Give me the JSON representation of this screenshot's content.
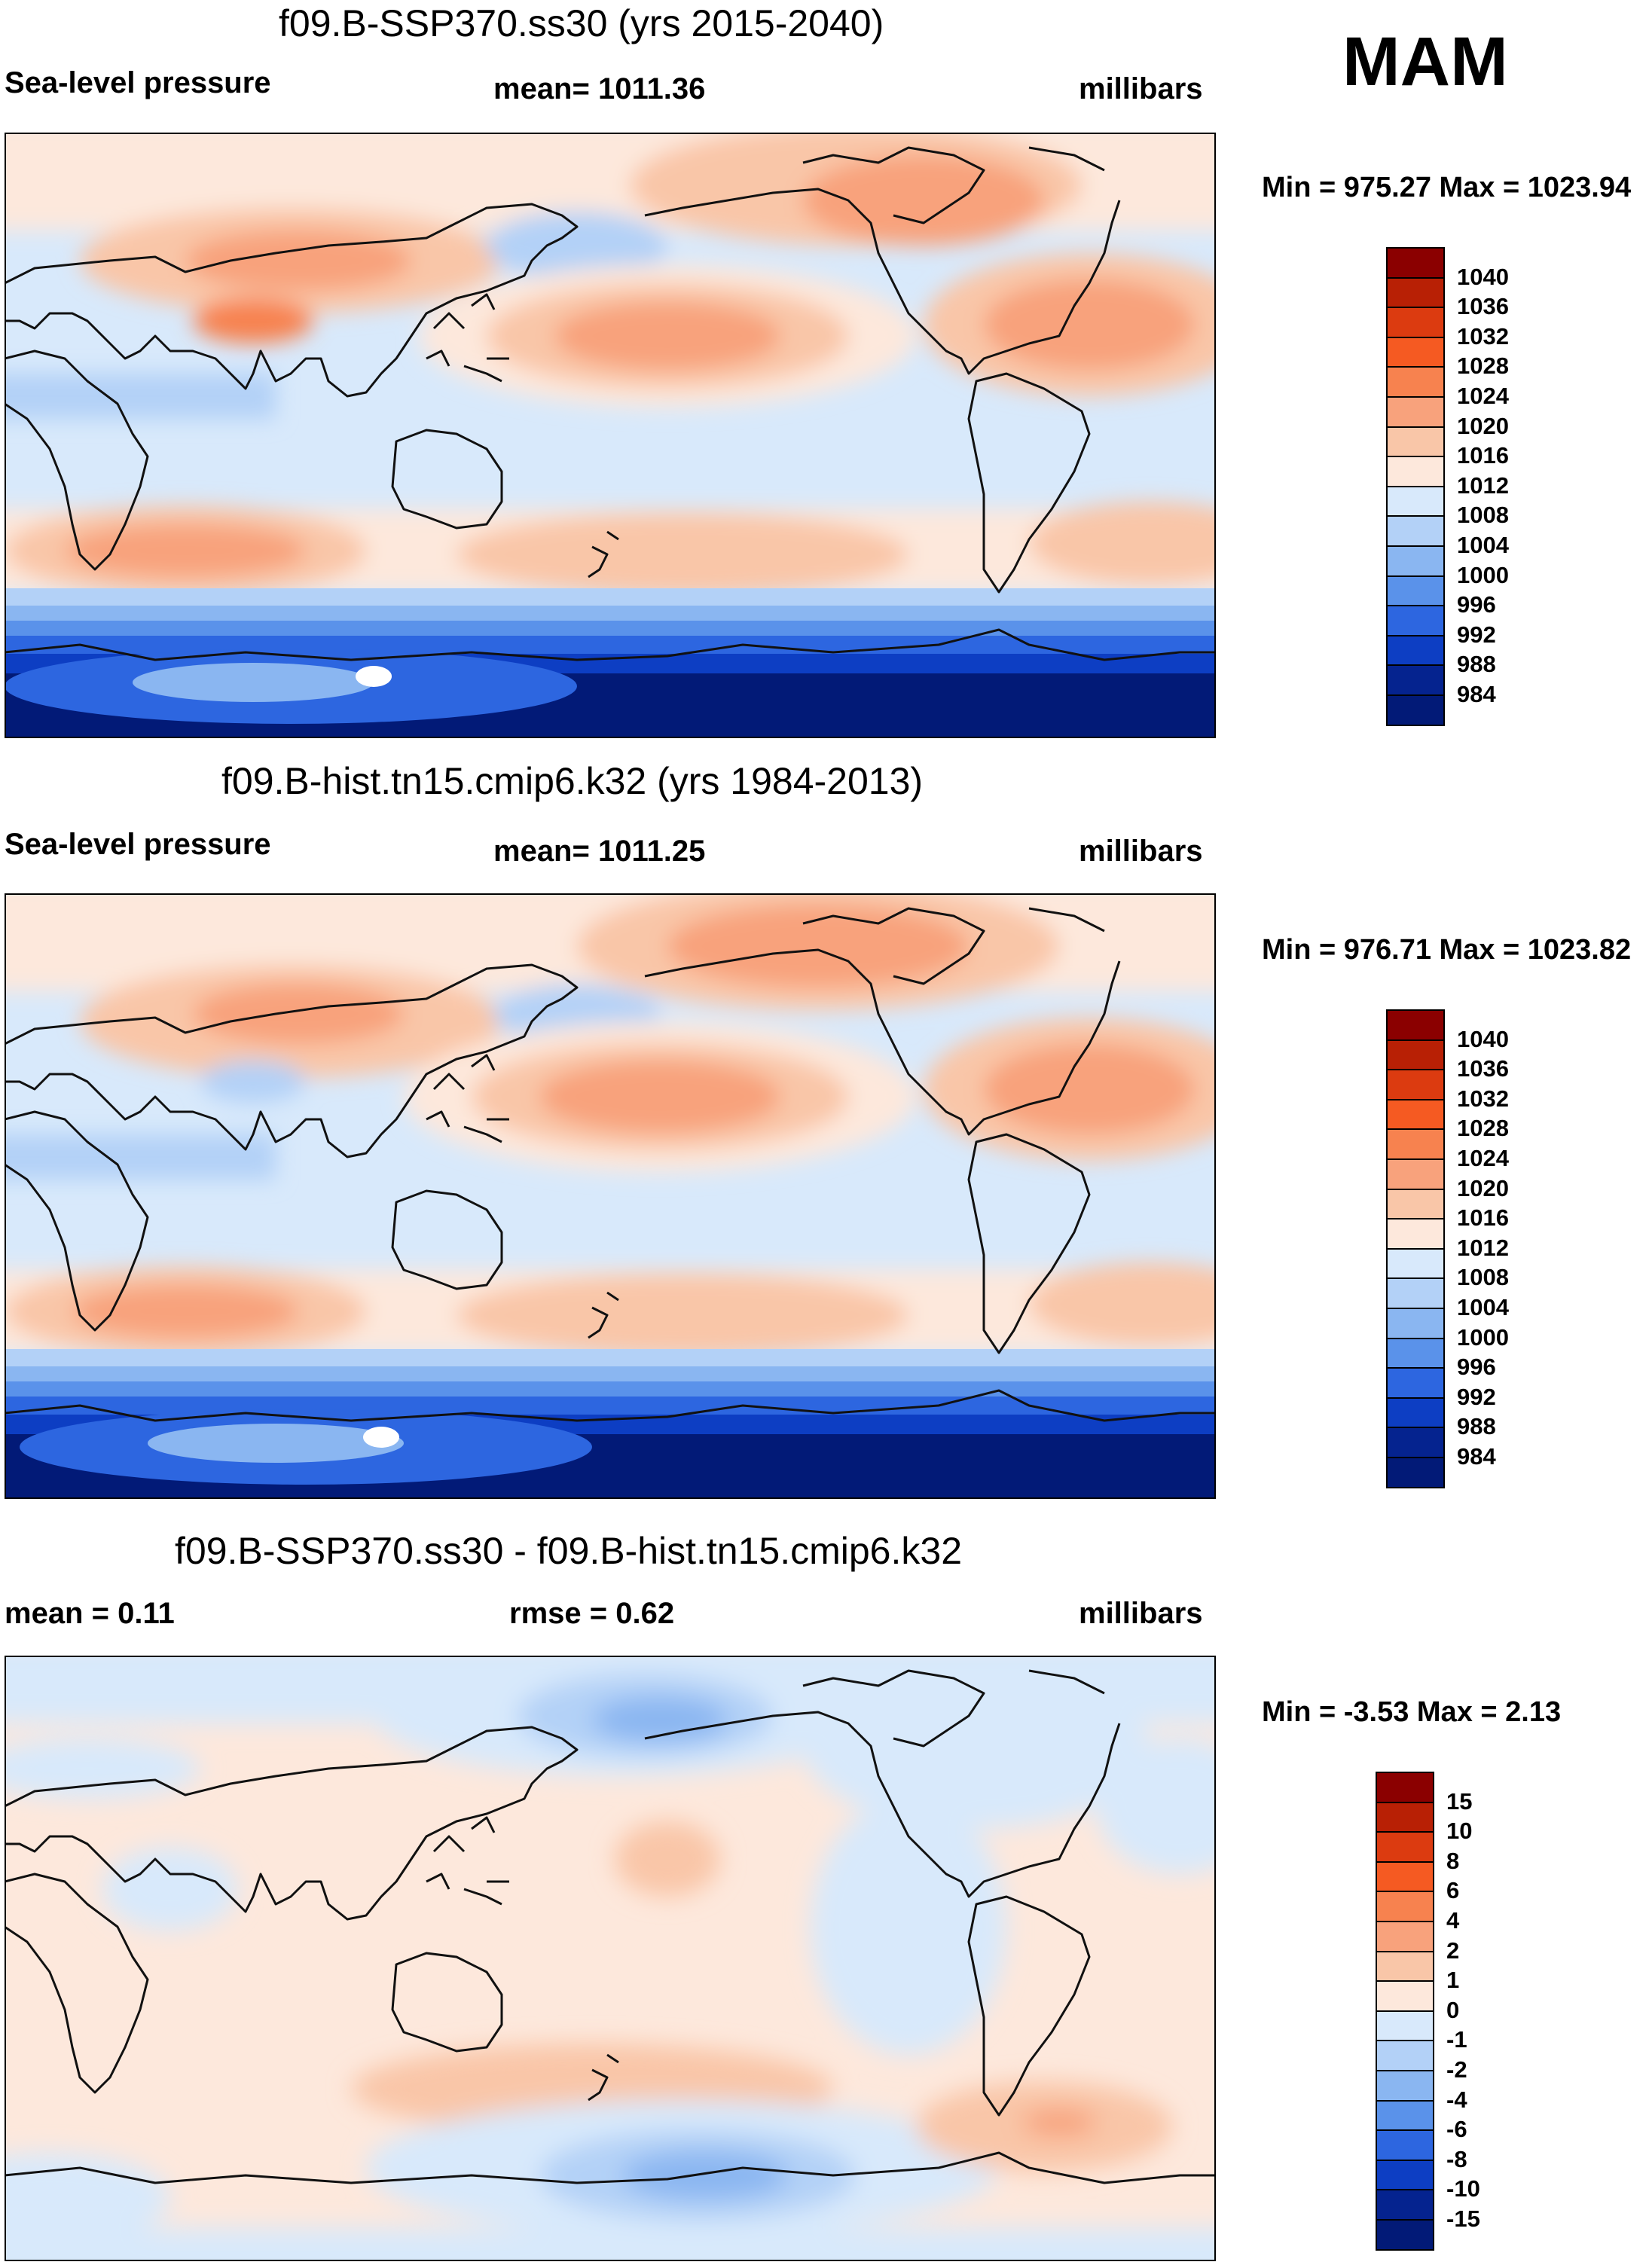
{
  "season": "MAM",
  "panels": [
    {
      "title": "f09.B-SSP370.ss30 (yrs 2015-2040)",
      "left": "Sea-level pressure",
      "center": "mean= 1011.36",
      "right": "millibars",
      "minmax": "Min = 975.27 Max = 1023.94",
      "kind": "abs"
    },
    {
      "title": "f09.B-hist.tn15.cmip6.k32 (yrs 1984-2013)",
      "left": "Sea-level pressure",
      "center": "mean= 1011.25",
      "right": "millibars",
      "minmax": "Min = 976.71 Max = 1023.82",
      "kind": "abs"
    },
    {
      "title": "f09.B-SSP370.ss30 - f09.B-hist.tn15.cmip6.k32",
      "left": "mean =   0.11",
      "center": "rmse =   0.62",
      "right": "millibars",
      "minmax": "Min =  -3.53 Max =   2.13",
      "kind": "diff"
    }
  ],
  "colorbars": {
    "abs": {
      "labels": [
        "1040",
        "1036",
        "1032",
        "1028",
        "1024",
        "1020",
        "1016",
        "1012",
        "1008",
        "1004",
        "1000",
        "996",
        "992",
        "988",
        "984"
      ],
      "colors": [
        "#8b0000",
        "#b82005",
        "#dc3b10",
        "#f55a22",
        "#f7824f",
        "#f8a27c",
        "#f9c6a8",
        "#fde8dc",
        "#d8e9fb",
        "#b3d1f7",
        "#8ab6f1",
        "#5a92ea",
        "#2d66e0",
        "#0d3ec3",
        "#05238f",
        "#021a77"
      ]
    },
    "diff": {
      "labels": [
        "15",
        "10",
        "8",
        "6",
        "4",
        "2",
        "1",
        "0",
        "-1",
        "-2",
        "-4",
        "-6",
        "-8",
        "-10",
        "-15"
      ],
      "colors": [
        "#8b0000",
        "#b82005",
        "#dc3b10",
        "#f55a22",
        "#f7824f",
        "#f8a27c",
        "#f9c6a8",
        "#fde8dc",
        "#d8e9fb",
        "#b3d1f7",
        "#8ab6f1",
        "#5a92ea",
        "#2d66e0",
        "#0d3ec3",
        "#05238f",
        "#021a77"
      ]
    }
  },
  "map_colors": {
    "mid_low": "#d8e9fb",
    "low_a": "#b3d1f7",
    "low_b": "#8ab6f1",
    "low_c": "#5a92ea",
    "low_d": "#2d66e0",
    "low_e": "#0d3ec3",
    "low_f": "#05238f",
    "low_g": "#021a77",
    "high_a": "#fde8dc",
    "high_b": "#f9c6a8",
    "high_c": "#f8a27c",
    "high_d": "#f7824f",
    "coast": "#111111"
  }
}
